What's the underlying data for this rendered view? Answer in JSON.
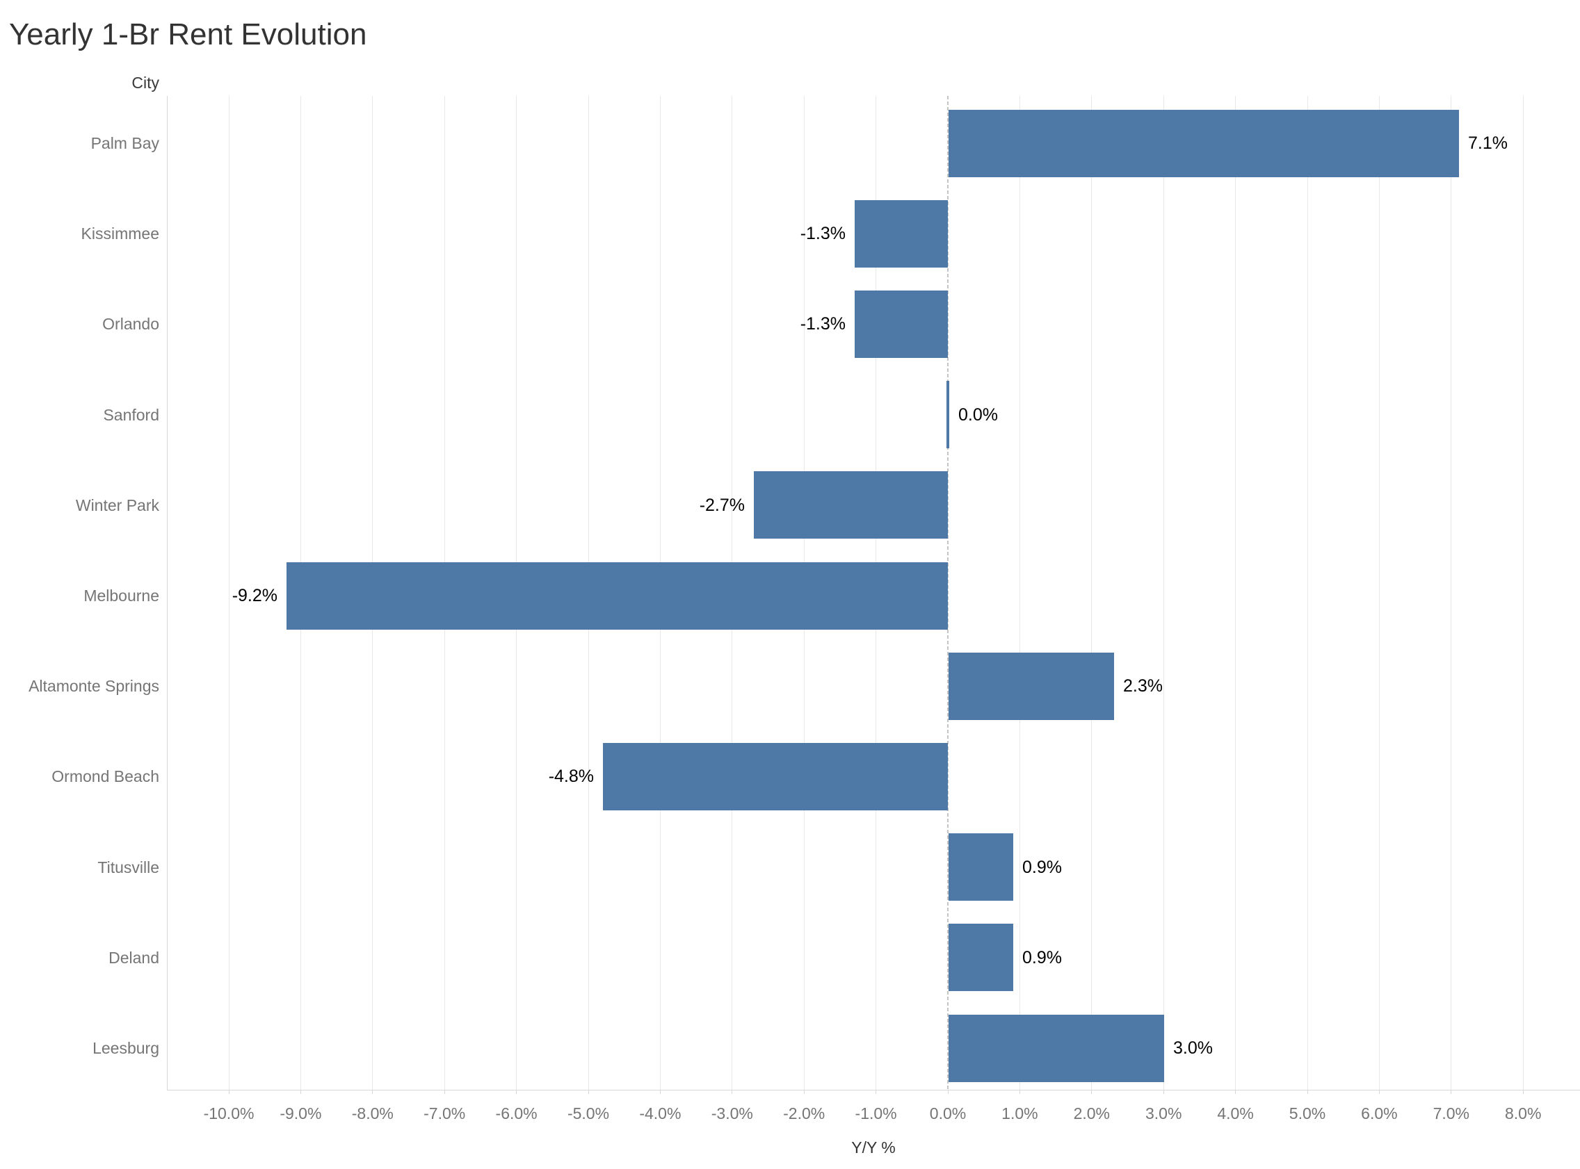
{
  "chart_data": {
    "type": "bar",
    "orientation": "horizontal",
    "title": "Yearly 1-Br Rent Evolution",
    "category_header": "City",
    "xlabel": "Y/Y %",
    "categories": [
      "Palm Bay",
      "Kissimmee",
      "Orlando",
      "Sanford",
      "Winter Park",
      "Melbourne",
      "Altamonte Springs",
      "Ormond Beach",
      "Titusville",
      "Deland",
      "Leesburg"
    ],
    "values": [
      7.1,
      -1.3,
      -1.3,
      0.0,
      -2.7,
      -9.2,
      2.3,
      -4.8,
      0.9,
      0.9,
      3.0
    ],
    "value_labels": [
      "7.1%",
      "-1.3%",
      "-1.3%",
      "0.0%",
      "-2.7%",
      "-9.2%",
      "2.3%",
      "-4.8%",
      "0.9%",
      "0.9%",
      "3.0%"
    ],
    "xlim": [
      -10.9,
      8.8
    ],
    "xticks": [
      {
        "v": -10,
        "label": "-10.0%"
      },
      {
        "v": -9,
        "label": "-9.0%"
      },
      {
        "v": -8,
        "label": "-8.0%"
      },
      {
        "v": -7,
        "label": "-7.0%"
      },
      {
        "v": -6,
        "label": "-6.0%"
      },
      {
        "v": -5,
        "label": "-5.0%"
      },
      {
        "v": -4,
        "label": "-4.0%"
      },
      {
        "v": -3,
        "label": "-3.0%"
      },
      {
        "v": -2,
        "label": "-2.0%"
      },
      {
        "v": -1,
        "label": "-1.0%"
      },
      {
        "v": 0,
        "label": "0.0%"
      },
      {
        "v": 1,
        "label": "1.0%"
      },
      {
        "v": 2,
        "label": "2.0%"
      },
      {
        "v": 3,
        "label": "3.0%"
      },
      {
        "v": 4,
        "label": "4.0%"
      },
      {
        "v": 5,
        "label": "5.0%"
      },
      {
        "v": 6,
        "label": "6.0%"
      },
      {
        "v": 7,
        "label": "7.0%"
      },
      {
        "v": 8,
        "label": "8.0%"
      }
    ],
    "grid": "vertical light-gray gridlines, dashed zero line",
    "legend": "none",
    "colors": {
      "bar": "#4e79a7",
      "title_text": "#333333",
      "axis_text": "#757575",
      "data_label_text": "#000000",
      "gridline": "#e8e8e8",
      "axis_line": "#d7d7d7",
      "zero_line": "#c4c4c4"
    }
  }
}
